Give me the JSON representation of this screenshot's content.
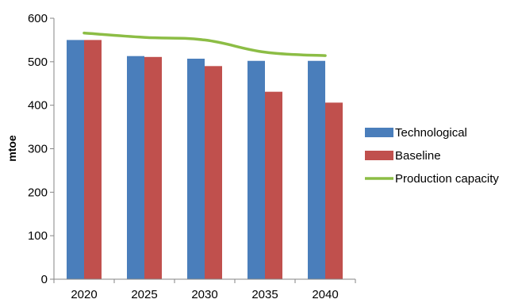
{
  "chart_data": {
    "type": "bar",
    "categories": [
      "2020",
      "2025",
      "2030",
      "2035",
      "2040"
    ],
    "ylabel": "mtoe",
    "ylim": [
      0,
      600
    ],
    "yticks": [
      0,
      100,
      200,
      300,
      400,
      500,
      600
    ],
    "grid": false,
    "legend_position": "right",
    "series": [
      {
        "name": "Technological",
        "type": "bar",
        "color": "#4a7ebb",
        "values": [
          550,
          513,
          507,
          502,
          502
        ]
      },
      {
        "name": "Baseline",
        "type": "bar",
        "color": "#c0504d",
        "values": [
          550,
          511,
          490,
          431,
          406
        ]
      },
      {
        "name": "Production capacity",
        "type": "line",
        "color": "#8cbd45",
        "values": [
          566,
          556,
          550,
          522,
          514
        ]
      }
    ]
  }
}
